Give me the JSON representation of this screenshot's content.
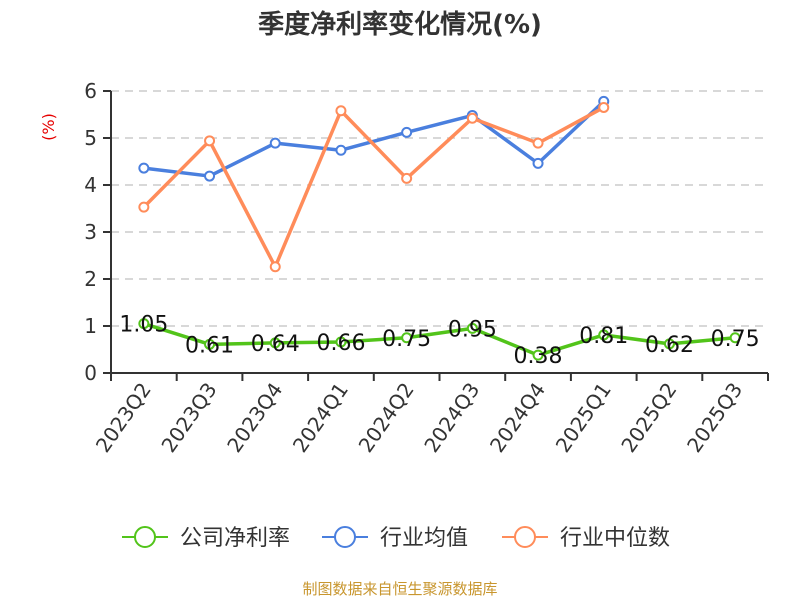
{
  "title": "季度净利率变化情况(%)",
  "source_note": "制图数据来自恒生聚源数据库",
  "colors": {
    "company": "#52c41a",
    "industry_avg": "#4a7fde",
    "industry_median": "#ff8c5a",
    "axis": "#333333",
    "grid": "#cccccc",
    "ylabel": "#e60000",
    "source": "#c8962e"
  },
  "legend": [
    {
      "label": "公司净利率",
      "color": "#52c41a"
    },
    {
      "label": "行业均值",
      "color": "#4a7fde"
    },
    {
      "label": "行业中位数",
      "color": "#ff8c5a"
    }
  ],
  "chart_data": {
    "type": "line",
    "title": "季度净利率变化情况(%)",
    "xlabel": "",
    "ylabel": "(%)",
    "ylim": [
      0,
      6
    ],
    "yticks": [
      0,
      1,
      2,
      3,
      4,
      5,
      6
    ],
    "grid": true,
    "legend_position": "bottom",
    "categories": [
      "2023Q2",
      "2023Q3",
      "2023Q4",
      "2024Q1",
      "2024Q2",
      "2024Q3",
      "2024Q4",
      "2025Q1",
      "2025Q2",
      "2025Q3"
    ],
    "series": [
      {
        "name": "公司净利率",
        "values": [
          1.05,
          0.61,
          0.64,
          0.66,
          0.75,
          0.95,
          0.38,
          0.81,
          0.62,
          0.75
        ],
        "labels": true
      },
      {
        "name": "行业均值",
        "values": [
          4.36,
          4.19,
          4.89,
          4.74,
          5.12,
          5.48,
          4.46,
          5.78,
          null,
          null
        ]
      },
      {
        "name": "行业中位数",
        "values": [
          3.53,
          4.94,
          2.26,
          5.58,
          4.14,
          5.42,
          4.89,
          5.65,
          null,
          null
        ]
      }
    ]
  }
}
